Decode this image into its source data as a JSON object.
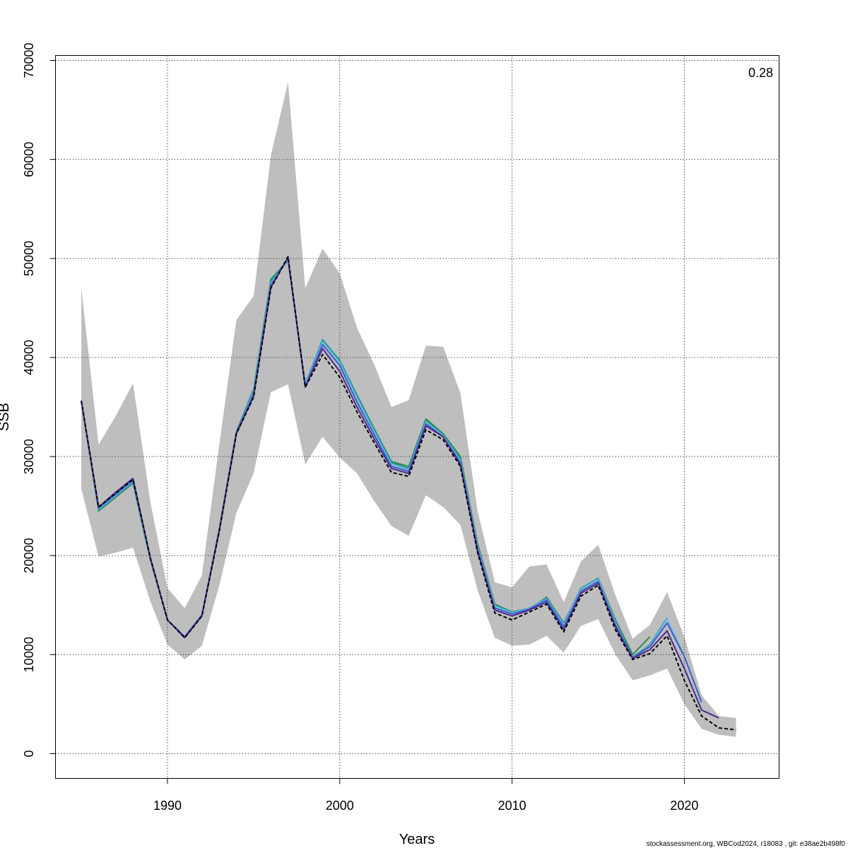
{
  "chart_data": {
    "type": "line",
    "title": "",
    "xlabel": "Years",
    "ylabel": "SSB",
    "xlim": [
      1983.5,
      2025.5
    ],
    "ylim": [
      -2500,
      70500
    ],
    "x_ticks": [
      1990,
      2000,
      2010,
      2020
    ],
    "y_ticks": [
      0,
      10000,
      20000,
      30000,
      40000,
      50000,
      60000,
      70000
    ],
    "grid": true,
    "annotation": "0.28",
    "footer": "stockassessment.org, WBCod2024, r18083 , git: e38ae2b498f0",
    "colors": {
      "band": "#bebebe",
      "base": "#000000",
      "peels": [
        "#4b2a8c",
        "#3a5fcd",
        "#6fb5e8",
        "#1a9a8a",
        "#2e8b57",
        "#9a9a1e"
      ]
    },
    "confidence_band": {
      "x": [
        1985,
        1986,
        1987,
        1988,
        1989,
        1990,
        1991,
        1992,
        1993,
        1994,
        1995,
        1996,
        1997,
        1998,
        1999,
        2000,
        2001,
        2002,
        2003,
        2004,
        2005,
        2006,
        2007,
        2008,
        2009,
        2010,
        2011,
        2012,
        2013,
        2014,
        2015,
        2016,
        2017,
        2018,
        2019,
        2020,
        2021,
        2022,
        2023
      ],
      "lower": [
        26700,
        19900,
        20300,
        20800,
        15400,
        11000,
        9500,
        10900,
        16900,
        24300,
        28300,
        36500,
        37300,
        29200,
        32000,
        29900,
        28300,
        25500,
        23000,
        22000,
        26100,
        24900,
        23100,
        16500,
        11700,
        10900,
        11000,
        11900,
        10200,
        12900,
        13600,
        10000,
        7400,
        7900,
        8600,
        5000,
        2500,
        1900,
        1700
      ],
      "upper": [
        47000,
        31200,
        34100,
        37400,
        25500,
        16700,
        14700,
        18000,
        31100,
        43800,
        46200,
        60400,
        67800,
        47000,
        51000,
        48500,
        43000,
        39300,
        35000,
        35700,
        41200,
        41100,
        36400,
        24500,
        17300,
        16800,
        18900,
        19100,
        15300,
        19400,
        21100,
        16000,
        11600,
        13000,
        16300,
        11800,
        5900,
        3800,
        3600
      ]
    },
    "series": [
      {
        "x": [
          1985,
          1986,
          1987,
          1988,
          1989,
          1990,
          1991,
          1992,
          1993,
          1994,
          1995,
          1996,
          1997,
          1998,
          1999,
          2000,
          2001,
          2002,
          2003,
          2004,
          2005,
          2006,
          2007,
          2008,
          2009,
          2010,
          2011,
          2012,
          2013,
          2014,
          2015,
          2016,
          2017,
          2018,
          2019,
          2020,
          2021,
          2022,
          2023
        ],
        "values": [
          35600,
          24900,
          26300,
          27700,
          19800,
          13500,
          11700,
          13900,
          22400,
          32300,
          36000,
          47000,
          50200,
          37000,
          40300,
          38000,
          34500,
          31400,
          28400,
          28000,
          32700,
          31700,
          29000,
          20300,
          14200,
          13500,
          14300,
          15100,
          12300,
          15900,
          17000,
          12500,
          9500,
          10100,
          11900,
          7400,
          3800,
          2600,
          2400
        ]
      },
      {
        "x": [
          1985,
          1986,
          1987,
          1988,
          1989,
          1990,
          1991,
          1992,
          1993,
          1994,
          1995,
          1996,
          1997,
          1998,
          1999,
          2000,
          2001,
          2002,
          2003,
          2004,
          2005,
          2006,
          2007,
          2008,
          2009,
          2010,
          2011,
          2012,
          2013,
          2014,
          2015,
          2016,
          2017,
          2018,
          2019,
          2020,
          2021,
          2022
        ],
        "values": [
          35600,
          24900,
          26400,
          27800,
          19800,
          13500,
          11700,
          13900,
          22400,
          32300,
          36100,
          47100,
          50100,
          37000,
          40900,
          38600,
          35000,
          31800,
          28800,
          28300,
          33100,
          32000,
          29200,
          20500,
          14500,
          13900,
          14500,
          15300,
          12500,
          16200,
          17200,
          12800,
          9600,
          10500,
          12400,
          8600,
          4400,
          3600
        ]
      },
      {
        "x": [
          1985,
          1986,
          1987,
          1988,
          1989,
          1990,
          1991,
          1992,
          1993,
          1994,
          1995,
          1996,
          1997,
          1998,
          1999,
          2000,
          2001,
          2002,
          2003,
          2004,
          2005,
          2006,
          2007,
          2008,
          2009,
          2010,
          2011,
          2012,
          2013,
          2014,
          2015,
          2016,
          2017,
          2018,
          2019,
          2020,
          2021
        ],
        "values": [
          35600,
          24800,
          26200,
          27600,
          19800,
          13500,
          11800,
          14000,
          22500,
          32400,
          36300,
          47300,
          50000,
          37100,
          41300,
          39200,
          35500,
          32200,
          29000,
          28500,
          33300,
          32000,
          29400,
          20700,
          14700,
          14100,
          14600,
          15500,
          12800,
          16400,
          17400,
          13000,
          9700,
          10800,
          13200,
          9800,
          5200
        ]
      },
      {
        "x": [
          1985,
          1986,
          1987,
          1988,
          1989,
          1990,
          1991,
          1992,
          1993,
          1994,
          1995,
          1996,
          1997,
          1998,
          1999,
          2000,
          2001,
          2002,
          2003,
          2004,
          2005,
          2006,
          2007,
          2008,
          2009,
          2010,
          2011,
          2012,
          2013,
          2014,
          2015,
          2016,
          2017,
          2018,
          2019,
          2020
        ],
        "values": [
          35700,
          24700,
          26100,
          27500,
          19700,
          13500,
          11800,
          14000,
          22500,
          32400,
          36500,
          47500,
          49900,
          37200,
          41600,
          39500,
          35900,
          32500,
          29200,
          28600,
          33500,
          32100,
          29600,
          20900,
          14900,
          14200,
          14700,
          15600,
          13000,
          16600,
          17600,
          13200,
          9600,
          10900,
          13600,
          9900
        ]
      },
      {
        "x": [
          1985,
          1986,
          1987,
          1988,
          1989,
          1990,
          1991,
          1992,
          1993,
          1994,
          1995,
          1996,
          1997,
          1998,
          1999,
          2000,
          2001,
          2002,
          2003,
          2004,
          2005,
          2006,
          2007,
          2008,
          2009,
          2010,
          2011,
          2012,
          2013,
          2014,
          2015,
          2016,
          2017,
          2018,
          2019
        ],
        "values": [
          35700,
          24600,
          26000,
          27400,
          19700,
          13500,
          11800,
          14000,
          22600,
          32500,
          36700,
          47700,
          49800,
          37300,
          41800,
          39700,
          36200,
          32800,
          29400,
          28800,
          33600,
          32200,
          29800,
          21000,
          15000,
          14300,
          14700,
          15700,
          13100,
          16700,
          17700,
          13300,
          9700,
          11000,
          13700
        ]
      },
      {
        "x": [
          1985,
          1986,
          1987,
          1988,
          1989,
          1990,
          1991,
          1992,
          1993,
          1994,
          1995,
          1996,
          1997,
          1998,
          1999,
          2000,
          2001,
          2002,
          2003,
          2004,
          2005,
          2006,
          2007,
          2008,
          2009,
          2010,
          2011,
          2012,
          2013,
          2014,
          2015,
          2016,
          2017,
          2018
        ],
        "values": [
          35700,
          24500,
          25900,
          27300,
          19600,
          13500,
          11800,
          14000,
          22600,
          32500,
          36800,
          47900,
          49800,
          37300,
          41700,
          39500,
          36200,
          32800,
          29500,
          29000,
          33800,
          32300,
          30000,
          21200,
          15100,
          14300,
          14500,
          15800,
          13200,
          16600,
          17700,
          13500,
          10000,
          11800
        ]
      }
    ]
  }
}
